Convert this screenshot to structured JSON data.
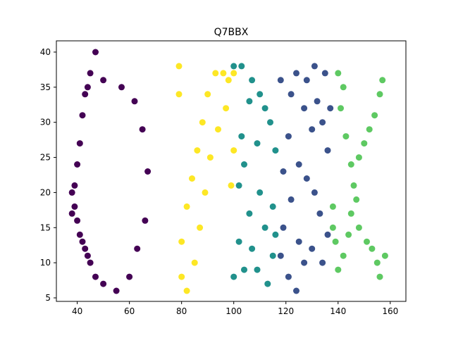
{
  "chart_data": {
    "type": "scatter",
    "title": "Q7BBX",
    "xlabel": "",
    "ylabel": "",
    "xlim": [
      32,
      166
    ],
    "ylim": [
      4.5,
      41.6
    ],
    "xticks": [
      40,
      60,
      80,
      100,
      120,
      140,
      160
    ],
    "yticks": [
      5,
      10,
      15,
      20,
      25,
      30,
      35,
      40
    ],
    "grid": false,
    "legend": "none",
    "series": [
      {
        "color": "#440154",
        "strokes": [
          {
            "x": 38,
            "y": 17
          },
          {
            "x": 38,
            "y": 20
          },
          {
            "x": 39,
            "y": 18
          },
          {
            "x": 39,
            "y": 21
          },
          {
            "x": 40,
            "y": 16
          },
          {
            "x": 40,
            "y": 24
          },
          {
            "x": 41,
            "y": 14
          },
          {
            "x": 41,
            "y": 27
          },
          {
            "x": 42,
            "y": 13
          },
          {
            "x": 42,
            "y": 31
          },
          {
            "x": 43,
            "y": 12
          },
          {
            "x": 43,
            "y": 34
          },
          {
            "x": 44,
            "y": 11
          },
          {
            "x": 44,
            "y": 35
          },
          {
            "x": 45,
            "y": 10
          },
          {
            "x": 45,
            "y": 37
          },
          {
            "x": 47,
            "y": 8
          },
          {
            "x": 47,
            "y": 40
          },
          {
            "x": 50,
            "y": 7
          },
          {
            "x": 50,
            "y": 36
          },
          {
            "x": 55,
            "y": 6
          },
          {
            "x": 57,
            "y": 35
          },
          {
            "x": 60,
            "y": 8
          },
          {
            "x": 62,
            "y": 33
          },
          {
            "x": 63,
            "y": 12
          },
          {
            "x": 65,
            "y": 29
          },
          {
            "x": 66,
            "y": 16
          },
          {
            "x": 67,
            "y": 23
          }
        ]
      },
      {
        "color": "#fde725",
        "strokes": [
          {
            "x": 79,
            "y": 38
          },
          {
            "x": 79,
            "y": 34
          },
          {
            "x": 80,
            "y": 13
          },
          {
            "x": 80,
            "y": 8
          },
          {
            "x": 82,
            "y": 18
          },
          {
            "x": 82,
            "y": 6
          },
          {
            "x": 84,
            "y": 22
          },
          {
            "x": 85,
            "y": 10
          },
          {
            "x": 86,
            "y": 26
          },
          {
            "x": 87,
            "y": 15
          },
          {
            "x": 88,
            "y": 30
          },
          {
            "x": 89,
            "y": 20
          },
          {
            "x": 90,
            "y": 34
          },
          {
            "x": 91,
            "y": 25
          },
          {
            "x": 93,
            "y": 37
          },
          {
            "x": 94,
            "y": 29
          },
          {
            "x": 96,
            "y": 37
          },
          {
            "x": 97,
            "y": 32
          },
          {
            "x": 98,
            "y": 36
          },
          {
            "x": 99,
            "y": 21
          },
          {
            "x": 100,
            "y": 37
          },
          {
            "x": 100,
            "y": 26
          }
        ]
      },
      {
        "color": "#21918c",
        "strokes": [
          {
            "x": 100,
            "y": 8
          },
          {
            "x": 100,
            "y": 38
          },
          {
            "x": 102,
            "y": 13
          },
          {
            "x": 102,
            "y": 21
          },
          {
            "x": 103,
            "y": 38
          },
          {
            "x": 103,
            "y": 28
          },
          {
            "x": 104,
            "y": 9
          },
          {
            "x": 104,
            "y": 24
          },
          {
            "x": 106,
            "y": 33
          },
          {
            "x": 106,
            "y": 17
          },
          {
            "x": 107,
            "y": 36
          },
          {
            "x": 107,
            "y": 12
          },
          {
            "x": 109,
            "y": 9
          },
          {
            "x": 109,
            "y": 27
          },
          {
            "x": 110,
            "y": 34
          },
          {
            "x": 110,
            "y": 20
          },
          {
            "x": 112,
            "y": 32
          },
          {
            "x": 112,
            "y": 15
          },
          {
            "x": 113,
            "y": 7
          },
          {
            "x": 114,
            "y": 30
          },
          {
            "x": 115,
            "y": 18
          },
          {
            "x": 115,
            "y": 11
          },
          {
            "x": 116,
            "y": 26
          },
          {
            "x": 116,
            "y": 14
          }
        ]
      },
      {
        "color": "#3b528b",
        "strokes": [
          {
            "x": 118,
            "y": 11
          },
          {
            "x": 118,
            "y": 36
          },
          {
            "x": 119,
            "y": 23
          },
          {
            "x": 119,
            "y": 15
          },
          {
            "x": 121,
            "y": 8
          },
          {
            "x": 121,
            "y": 28
          },
          {
            "x": 122,
            "y": 34
          },
          {
            "x": 122,
            "y": 19
          },
          {
            "x": 124,
            "y": 6
          },
          {
            "x": 124,
            "y": 37
          },
          {
            "x": 125,
            "y": 24
          },
          {
            "x": 125,
            "y": 13
          },
          {
            "x": 127,
            "y": 10
          },
          {
            "x": 127,
            "y": 32
          },
          {
            "x": 128,
            "y": 22
          },
          {
            "x": 128,
            "y": 36
          },
          {
            "x": 130,
            "y": 29
          },
          {
            "x": 130,
            "y": 12
          },
          {
            "x": 131,
            "y": 38
          },
          {
            "x": 131,
            "y": 20
          },
          {
            "x": 132,
            "y": 33
          },
          {
            "x": 133,
            "y": 17
          },
          {
            "x": 134,
            "y": 10
          },
          {
            "x": 134,
            "y": 30
          },
          {
            "x": 135,
            "y": 37
          },
          {
            "x": 136,
            "y": 14
          },
          {
            "x": 136,
            "y": 26
          },
          {
            "x": 137,
            "y": 32
          }
        ]
      },
      {
        "color": "#5ec962",
        "strokes": [
          {
            "x": 138,
            "y": 18
          },
          {
            "x": 138,
            "y": 15
          },
          {
            "x": 139,
            "y": 13
          },
          {
            "x": 140,
            "y": 37
          },
          {
            "x": 140,
            "y": 9
          },
          {
            "x": 141,
            "y": 32
          },
          {
            "x": 142,
            "y": 11
          },
          {
            "x": 142,
            "y": 35
          },
          {
            "x": 143,
            "y": 28
          },
          {
            "x": 144,
            "y": 14
          },
          {
            "x": 145,
            "y": 24
          },
          {
            "x": 145,
            "y": 17
          },
          {
            "x": 146,
            "y": 21
          },
          {
            "x": 147,
            "y": 19
          },
          {
            "x": 148,
            "y": 25
          },
          {
            "x": 148,
            "y": 15
          },
          {
            "x": 150,
            "y": 27
          },
          {
            "x": 151,
            "y": 13
          },
          {
            "x": 152,
            "y": 29
          },
          {
            "x": 153,
            "y": 12
          },
          {
            "x": 154,
            "y": 31
          },
          {
            "x": 155,
            "y": 10
          },
          {
            "x": 156,
            "y": 34
          },
          {
            "x": 156,
            "y": 8
          },
          {
            "x": 157,
            "y": 36
          },
          {
            "x": 158,
            "y": 11
          }
        ]
      }
    ]
  }
}
